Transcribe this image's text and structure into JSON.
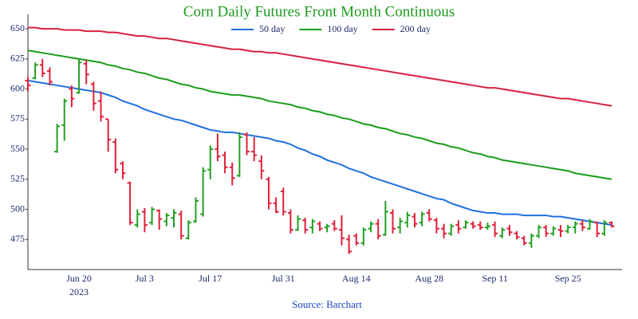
{
  "chart_data": {
    "type": "ohlc",
    "title": "Corn Daily Futures Front Month Continuous",
    "source": "Source: Barchart",
    "year_label": "2023",
    "categories": [
      null,
      null,
      null,
      null,
      null,
      null,
      null,
      "Jun 20",
      null,
      null,
      null,
      null,
      null,
      null,
      null,
      null,
      "Jul 3",
      null,
      null,
      null,
      null,
      null,
      null,
      null,
      null,
      "Jul 17",
      null,
      null,
      null,
      null,
      null,
      null,
      null,
      null,
      null,
      "Jul 31",
      null,
      null,
      null,
      null,
      null,
      null,
      null,
      null,
      null,
      "Aug 14",
      null,
      null,
      null,
      null,
      null,
      null,
      null,
      null,
      null,
      "Aug 28",
      null,
      null,
      null,
      null,
      null,
      null,
      null,
      null,
      "Sep 11",
      null,
      null,
      null,
      null,
      null,
      null,
      null,
      null,
      null,
      "Sep 25",
      null,
      null,
      null,
      null,
      null,
      null
    ],
    "ohlc": {
      "up_color": "#22a022",
      "down_color": "#e0203a",
      "open": [
        607,
        609,
        620,
        615,
        548,
        570,
        600,
        597,
        621,
        604,
        590,
        575,
        556,
        538,
        522,
        487,
        498,
        489,
        499,
        490,
        493,
        496,
        476,
        490,
        496,
        533,
        550,
        545,
        535,
        528,
        562,
        548,
        540,
        525,
        505,
        515,
        497,
        483,
        491,
        485,
        488,
        485,
        488,
        483,
        475,
        478,
        472,
        484,
        488,
        479,
        497,
        485,
        489,
        494,
        489,
        497,
        491,
        484,
        480,
        487,
        485,
        488,
        487,
        485,
        487,
        478,
        484,
        480,
        476,
        472,
        478,
        485,
        480,
        483,
        482,
        485,
        488,
        484,
        489,
        480,
        489
      ],
      "high": [
        610,
        622,
        625,
        618,
        571,
        592,
        603,
        625,
        624,
        606,
        598,
        575,
        559,
        540,
        523,
        500,
        501,
        502,
        500,
        497,
        500,
        499,
        491,
        510,
        535,
        553,
        563,
        548,
        539,
        564,
        564,
        560,
        545,
        527,
        510,
        518,
        500,
        495,
        493,
        492,
        490,
        488,
        491,
        495,
        479,
        480,
        485,
        490,
        492,
        507,
        500,
        493,
        498,
        497,
        498,
        500,
        493,
        488,
        488,
        491,
        491,
        490,
        490,
        489,
        490,
        485,
        487,
        482,
        478,
        480,
        487,
        487,
        486,
        487,
        487,
        490,
        491,
        492,
        490,
        491,
        490
      ],
      "low": [
        598,
        608,
        610,
        603,
        547,
        557,
        585,
        596,
        604,
        582,
        573,
        548,
        530,
        525,
        487,
        485,
        481,
        487,
        483,
        486,
        485,
        475,
        475,
        489,
        494,
        525,
        540,
        530,
        520,
        527,
        545,
        540,
        525,
        500,
        497,
        495,
        480,
        482,
        480,
        480,
        482,
        481,
        482,
        470,
        463,
        470,
        470,
        481,
        475,
        478,
        480,
        480,
        485,
        485,
        486,
        490,
        480,
        476,
        478,
        480,
        484,
        484,
        483,
        483,
        477,
        476,
        478,
        475,
        470,
        468,
        476,
        477,
        478,
        477,
        480,
        480,
        482,
        483,
        477,
        478,
        485
      ],
      "close": [
        603,
        620,
        613,
        606,
        569,
        590,
        592,
        622,
        612,
        588,
        577,
        558,
        533,
        530,
        489,
        496,
        487,
        500,
        492,
        495,
        497,
        478,
        489,
        507,
        532,
        550,
        544,
        535,
        526,
        560,
        548,
        545,
        532,
        505,
        498,
        498,
        483,
        492,
        483,
        490,
        484,
        486,
        484,
        476,
        465,
        472,
        483,
        488,
        478,
        498,
        484,
        490,
        495,
        488,
        496,
        492,
        484,
        480,
        486,
        484,
        489,
        486,
        485,
        486,
        480,
        483,
        481,
        477,
        472,
        478,
        485,
        480,
        484,
        482,
        485,
        488,
        485,
        490,
        480,
        489,
        486
      ]
    },
    "series": [
      {
        "name": "50 day",
        "color": "#1f6fe0",
        "values": [
          607,
          606,
          605,
          604,
          603,
          602,
          601,
          600,
          599,
          598,
          597,
          595,
          593,
          590,
          588,
          586,
          583,
          581,
          579,
          577,
          575,
          574,
          572,
          570,
          568,
          566,
          565,
          564,
          564,
          563,
          562,
          561,
          560,
          559,
          557,
          556,
          554,
          551,
          549,
          546,
          544,
          541,
          539,
          537,
          534,
          532,
          530,
          527,
          525,
          523,
          521,
          519,
          517,
          515,
          513,
          511,
          509,
          508,
          505,
          503,
          501,
          499,
          498,
          497,
          497,
          496,
          496,
          496,
          495,
          495,
          495,
          495,
          494,
          494,
          493,
          492,
          491,
          490,
          489,
          488,
          487
        ]
      },
      {
        "name": "100 day",
        "color": "#1a9c1a",
        "values": [
          632,
          631,
          630,
          629,
          628,
          627,
          626,
          625,
          624,
          623,
          622,
          620,
          619,
          617,
          616,
          614,
          613,
          611,
          609,
          608,
          606,
          604,
          603,
          601,
          600,
          598,
          597,
          596,
          595,
          595,
          594,
          593,
          592,
          590,
          589,
          588,
          587,
          585,
          584,
          582,
          581,
          579,
          578,
          576,
          575,
          573,
          571,
          570,
          568,
          567,
          565,
          563,
          562,
          560,
          559,
          557,
          555,
          554,
          552,
          551,
          549,
          547,
          546,
          544,
          543,
          541,
          540,
          539,
          538,
          537,
          536,
          535,
          534,
          533,
          532,
          530,
          529,
          528,
          527,
          526,
          525
        ]
      },
      {
        "name": "200 day",
        "color": "#d8203c",
        "values": [
          651,
          651,
          650,
          650,
          650,
          649,
          649,
          649,
          648,
          648,
          648,
          647,
          647,
          646,
          645,
          644,
          644,
          643,
          642,
          642,
          641,
          640,
          639,
          638,
          637,
          636,
          635,
          634,
          633,
          633,
          632,
          631,
          631,
          630,
          630,
          629,
          628,
          627,
          626,
          625,
          624,
          623,
          622,
          621,
          620,
          619,
          618,
          617,
          616,
          615,
          614,
          613,
          612,
          611,
          610,
          609,
          608,
          607,
          606,
          605,
          604,
          603,
          602,
          601,
          601,
          600,
          599,
          598,
          597,
          596,
          595,
          594,
          593,
          592,
          592,
          591,
          590,
          589,
          588,
          587,
          586
        ]
      }
    ],
    "ylim": [
      450,
      662
    ],
    "yticks": [
      475,
      500,
      525,
      550,
      575,
      600,
      625,
      650
    ],
    "legend": "top"
  }
}
